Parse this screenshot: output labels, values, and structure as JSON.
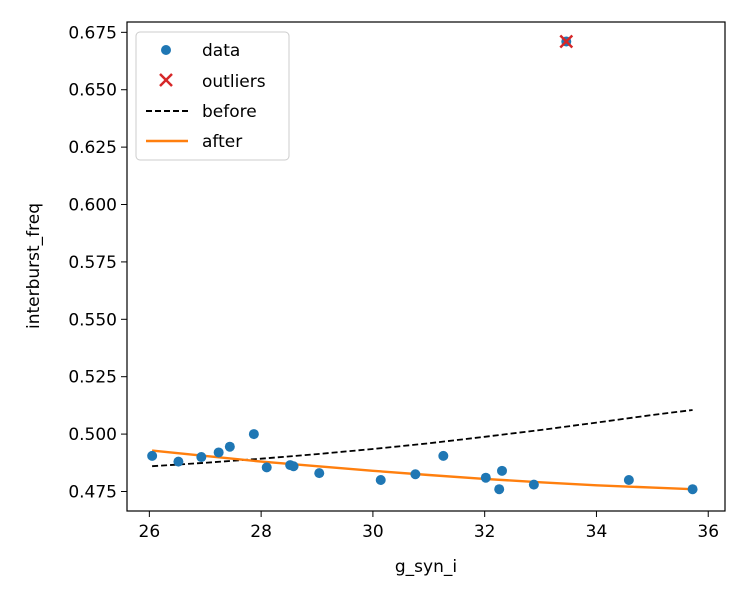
{
  "chart_data": {
    "type": "scatter",
    "xlabel": "g_syn_i",
    "ylabel": "interburst_freq",
    "xlim": [
      25.6,
      36.3
    ],
    "ylim": [
      0.4665,
      0.6795
    ],
    "xticks": [
      "26",
      "28",
      "30",
      "32",
      "34",
      "36"
    ],
    "yticks": [
      "0.475",
      "0.500",
      "0.525",
      "0.550",
      "0.575",
      "0.600",
      "0.625",
      "0.650",
      "0.675"
    ],
    "grid": false,
    "legend": {
      "position": "top-left",
      "entries": [
        "data",
        "outliers",
        "before",
        "after"
      ]
    },
    "series": [
      {
        "name": "data",
        "kind": "scatter",
        "marker": "circle",
        "color": "#1f77b4",
        "points": [
          [
            26.05,
            0.4905
          ],
          [
            26.52,
            0.488
          ],
          [
            26.93,
            0.49
          ],
          [
            27.24,
            0.492
          ],
          [
            27.44,
            0.4945
          ],
          [
            27.87,
            0.5
          ],
          [
            28.1,
            0.4855
          ],
          [
            28.52,
            0.4865
          ],
          [
            28.58,
            0.486
          ],
          [
            29.04,
            0.483
          ],
          [
            30.14,
            0.48
          ],
          [
            30.76,
            0.4825
          ],
          [
            31.26,
            0.4905
          ],
          [
            32.02,
            0.481
          ],
          [
            32.26,
            0.476
          ],
          [
            32.31,
            0.484
          ],
          [
            32.88,
            0.478
          ],
          [
            33.46,
            0.671
          ],
          [
            34.58,
            0.48
          ],
          [
            35.72,
            0.476
          ]
        ]
      },
      {
        "name": "outliers",
        "kind": "scatter",
        "marker": "x",
        "color": "#d62728",
        "points": [
          [
            33.46,
            0.671
          ]
        ]
      },
      {
        "name": "before",
        "kind": "line",
        "style": "dashed",
        "color": "#000000",
        "points": [
          [
            26.05,
            0.486
          ],
          [
            27.0,
            0.4875
          ],
          [
            28.0,
            0.4893
          ],
          [
            29.0,
            0.4913
          ],
          [
            30.0,
            0.4935
          ],
          [
            31.0,
            0.496
          ],
          [
            32.0,
            0.4988
          ],
          [
            33.0,
            0.5018
          ],
          [
            34.0,
            0.505
          ],
          [
            35.0,
            0.5083
          ],
          [
            35.72,
            0.5105
          ]
        ]
      },
      {
        "name": "after",
        "kind": "line",
        "style": "solid",
        "color": "#ff7f0e",
        "points": [
          [
            26.05,
            0.4928
          ],
          [
            27.0,
            0.4905
          ],
          [
            28.0,
            0.488
          ],
          [
            29.0,
            0.486
          ],
          [
            30.0,
            0.484
          ],
          [
            31.0,
            0.4822
          ],
          [
            32.0,
            0.4805
          ],
          [
            33.0,
            0.479
          ],
          [
            34.0,
            0.4777
          ],
          [
            35.0,
            0.4767
          ],
          [
            35.72,
            0.476
          ]
        ]
      }
    ]
  }
}
